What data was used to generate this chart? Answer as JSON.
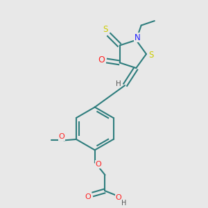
{
  "bg": "#e8e8e8",
  "bond_color": "#2e7d7d",
  "colors": {
    "N": "#2020ff",
    "O": "#ff2020",
    "S": "#cccc00",
    "C": "#000000",
    "H": "#555555"
  },
  "lw": 1.5,
  "fs": 7.5,
  "figsize": [
    3.0,
    3.0
  ],
  "dpi": 100
}
